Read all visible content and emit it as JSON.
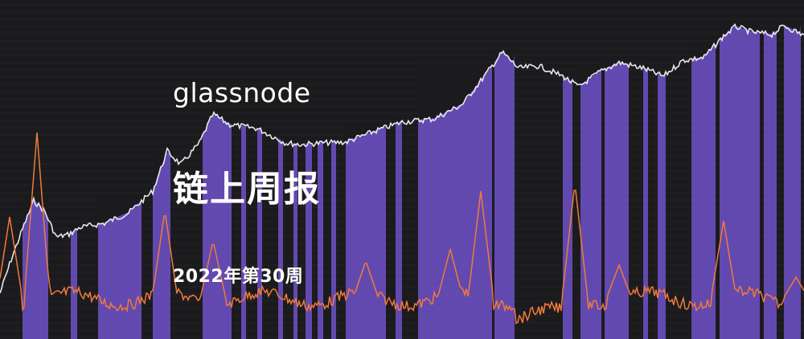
{
  "banner": {
    "brand": "glassnode",
    "title": "链上周报",
    "subtitle": "2022年第30周"
  },
  "colors": {
    "background": "#1b1b1d",
    "grid": "#3a3a3e",
    "band": "#6a4fc0",
    "price_line": "#e8e8ec",
    "indicator_line": "#f07a3c"
  }
}
